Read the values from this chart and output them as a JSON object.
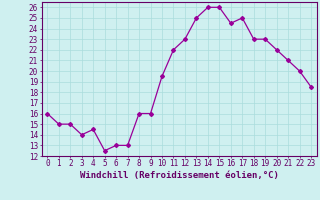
{
  "x": [
    0,
    1,
    2,
    3,
    4,
    5,
    6,
    7,
    8,
    9,
    10,
    11,
    12,
    13,
    14,
    15,
    16,
    17,
    18,
    19,
    20,
    21,
    22,
    23
  ],
  "y": [
    16,
    15,
    15,
    14,
    14.5,
    12.5,
    13,
    13,
    16,
    16,
    19.5,
    22,
    23,
    25,
    26,
    26,
    24.5,
    25,
    23,
    23,
    22,
    21,
    20,
    18.5
  ],
  "line_color": "#990099",
  "marker": "D",
  "marker_size": 2.0,
  "linewidth": 0.9,
  "background_color": "#cff0f0",
  "grid_color": "#aadddd",
  "xlabel": "Windchill (Refroidissement éolien,°C)",
  "xlabel_color": "#660066",
  "xlabel_fontsize": 6.5,
  "tick_color": "#660066",
  "tick_fontsize": 5.5,
  "ylim": [
    12,
    26.5
  ],
  "xlim": [
    -0.5,
    23.5
  ],
  "yticks": [
    12,
    13,
    14,
    15,
    16,
    17,
    18,
    19,
    20,
    21,
    22,
    23,
    24,
    25,
    26
  ],
  "xticks": [
    0,
    1,
    2,
    3,
    4,
    5,
    6,
    7,
    8,
    9,
    10,
    11,
    12,
    13,
    14,
    15,
    16,
    17,
    18,
    19,
    20,
    21,
    22,
    23
  ],
  "spine_color": "#660066"
}
